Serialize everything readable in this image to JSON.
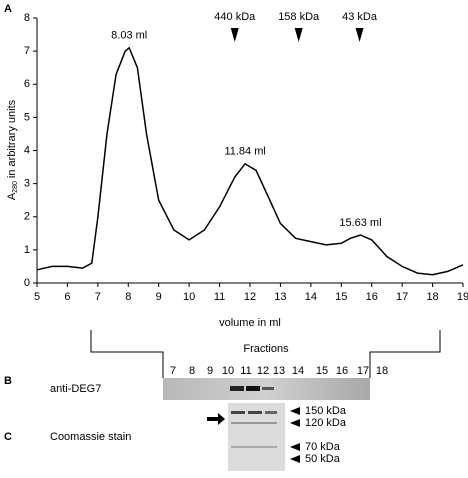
{
  "chart_data": {
    "type": "line",
    "x_label": "volume in ml",
    "y_label_parts": [
      "A",
      "280",
      " in arbitrary units"
    ],
    "x": [
      5,
      5.5,
      6,
      6.5,
      6.8,
      7,
      7.3,
      7.6,
      7.9,
      8.03,
      8.3,
      8.6,
      9,
      9.5,
      10,
      10.5,
      11,
      11.5,
      11.84,
      12.2,
      12.6,
      13,
      13.5,
      14,
      14.5,
      15,
      15.3,
      15.63,
      16,
      16.5,
      17,
      17.5,
      18,
      18.5,
      19
    ],
    "series": [
      {
        "color": "#000000",
        "values": [
          0.4,
          0.5,
          0.5,
          0.45,
          0.6,
          2,
          4.5,
          6.3,
          7.0,
          7.1,
          6.5,
          4.5,
          2.5,
          1.6,
          1.3,
          1.6,
          2.3,
          3.2,
          3.6,
          3.4,
          2.6,
          1.8,
          1.35,
          1.25,
          1.15,
          1.2,
          1.35,
          1.45,
          1.3,
          0.8,
          0.5,
          0.3,
          0.25,
          0.35,
          0.55
        ]
      }
    ],
    "xlim": [
      5,
      19
    ],
    "ylim": [
      0,
      8
    ],
    "xticks": [
      5,
      6,
      7,
      8,
      9,
      10,
      11,
      12,
      13,
      14,
      15,
      16,
      17,
      18,
      19
    ],
    "yticks": [
      0,
      1,
      2,
      3,
      4,
      5,
      6,
      7,
      8
    ],
    "annotations": [
      {
        "text": "8.03 ml",
        "x": 8.03
      },
      {
        "text": "11.84 ml",
        "x": 11.84
      },
      {
        "text": "15.63 ml",
        "x": 15.63
      }
    ],
    "markers": [
      {
        "label": "440 kDa",
        "x": 11.5
      },
      {
        "label": "158 kDa",
        "x": 13.6
      },
      {
        "label": "43 kDa",
        "x": 15.6
      }
    ]
  },
  "panel_labels": [
    "A",
    "B",
    "C"
  ],
  "fractions": {
    "title": "Fractions",
    "numbers": [
      "7",
      "8",
      "9",
      "10",
      "11",
      "12",
      "13",
      "14",
      "15",
      "16",
      "17",
      "18"
    ]
  },
  "blot_b": {
    "label": "anti-DEG7"
  },
  "blot_c": {
    "label": "Coomassie stain",
    "markers": [
      "150 kDa",
      "120 kDa",
      "70 kDa",
      "50 kDa"
    ]
  }
}
